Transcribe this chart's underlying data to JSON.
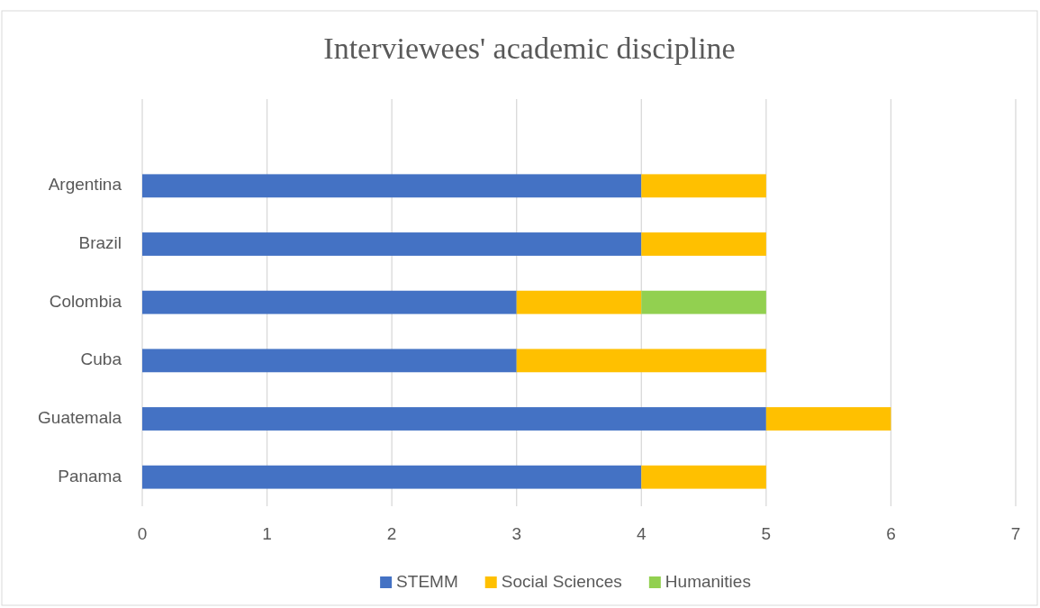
{
  "chart_data": {
    "type": "bar",
    "title": "Interviewees' academic discipline",
    "orientation": "horizontal",
    "stacked": true,
    "categories": [
      "Argentina",
      "Brazil",
      "Colombia",
      "Cuba",
      "Guatemala",
      "Panama"
    ],
    "series": [
      {
        "name": "STEMM",
        "color": "#4472c4",
        "values": [
          4,
          4,
          3,
          3,
          5,
          4
        ]
      },
      {
        "name": "Social Sciences",
        "color": "#ffc000",
        "values": [
          1,
          1,
          1,
          2,
          1,
          1
        ]
      },
      {
        "name": "Humanities",
        "color": "#92d050",
        "values": [
          0,
          0,
          1,
          0,
          0,
          0
        ]
      }
    ],
    "xlim": [
      0,
      7
    ],
    "xticks": [
      0,
      1,
      2,
      3,
      4,
      5,
      6,
      7
    ],
    "grid": "x",
    "legend": "bottom"
  }
}
